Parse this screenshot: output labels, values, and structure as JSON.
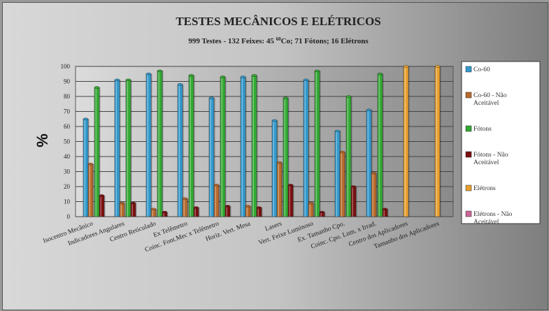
{
  "chart_data": {
    "type": "bar",
    "title": "TESTES MECÂNICOS E ELÉTRICOS",
    "subtitle": {
      "main": "999 Testes - 132 Feixes: 45 ",
      "sup": "60",
      "rest": "Co; 71 Fótons; 16 Elétrons"
    },
    "ylabel": "%",
    "ylim": [
      0,
      100
    ],
    "yticks": [
      "0",
      "10",
      "20",
      "30",
      "40",
      "50",
      "60",
      "70",
      "80",
      "90",
      "100"
    ],
    "grid": true,
    "legend_position": "right",
    "categories": [
      "Isocentro Mecânico",
      "Indicadores Angulares",
      "Centro Reticulado",
      "Ex Telêmetro",
      "Coinc. Font.Mec x Telêmetro",
      "Horiz. Vert. Mesa",
      "Lasers",
      "Vert. Feixe Luminoso",
      "Ex. Tamanho Cpo.",
      "Coinc. Cpo. Lum. x Irrad.",
      "Centro dos Aplicadores",
      "Tamanho dos Aplicadores"
    ],
    "series": [
      {
        "name": "Co-60",
        "color": "#3399cc",
        "values": [
          65,
          91,
          95,
          88,
          79,
          93,
          64,
          91,
          57,
          71,
          null,
          null
        ]
      },
      {
        "name": "Co-60 - Não Aceitável",
        "color": "#b86a2c",
        "values": [
          35,
          9,
          5,
          12,
          21,
          7,
          36,
          9,
          43,
          29,
          null,
          null
        ]
      },
      {
        "name": "Fótons",
        "color": "#33aa33",
        "values": [
          86,
          91,
          97,
          94,
          93,
          94,
          79,
          97,
          80,
          95,
          null,
          null
        ]
      },
      {
        "name": "Fótons - Não Aceitável",
        "color": "#7a1010",
        "values": [
          14,
          9,
          3,
          6,
          7,
          6,
          21,
          3,
          20,
          5,
          null,
          null
        ]
      },
      {
        "name": "Elétrons",
        "color": "#e8a030",
        "values": [
          null,
          null,
          null,
          null,
          null,
          null,
          null,
          null,
          null,
          null,
          100,
          100
        ]
      },
      {
        "name": "Elétrons - Não Aceitável",
        "color": "#cc6699",
        "values": [
          null,
          null,
          null,
          null,
          null,
          null,
          null,
          null,
          null,
          null,
          0,
          0
        ]
      }
    ]
  }
}
